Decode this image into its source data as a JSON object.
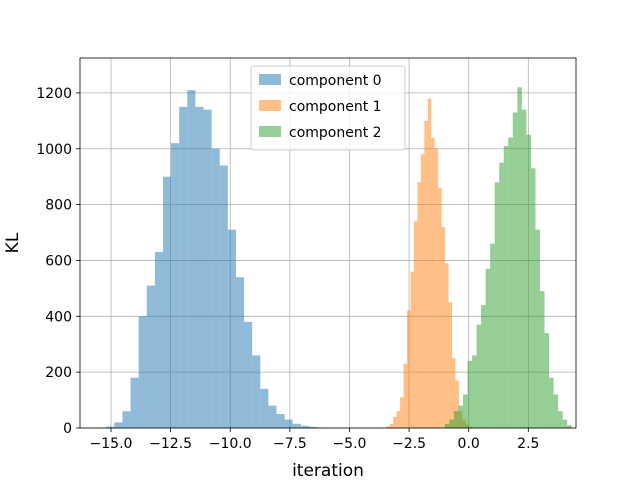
{
  "chart_data": {
    "type": "histogram",
    "title": "",
    "xlabel": "iteration",
    "ylabel": "KL",
    "xlim": [
      -16.3,
      4.5
    ],
    "ylim": [
      0,
      1325
    ],
    "x_ticks": [
      -15.0,
      -12.5,
      -10.0,
      -7.5,
      -5.0,
      -2.5,
      0.0,
      2.5
    ],
    "x_tick_labels": [
      "−15.0",
      "−12.5",
      "−10.0",
      "−7.5",
      "−5.0",
      "−2.5",
      "0.0",
      "2.5"
    ],
    "y_ticks": [
      0,
      200,
      400,
      600,
      800,
      1000,
      1200
    ],
    "y_tick_labels": [
      "0",
      "200",
      "400",
      "600",
      "800",
      "1000",
      "1200"
    ],
    "grid": true,
    "legend_position": "top-center",
    "series": [
      {
        "name": "component 0",
        "color": "#1f77b4",
        "opacity": 0.5,
        "bin_start": -15.2,
        "bin_width": 0.34,
        "values": [
          5,
          20,
          60,
          180,
          400,
          510,
          630,
          900,
          1020,
          1150,
          1210,
          1150,
          1140,
          1000,
          940,
          710,
          540,
          380,
          260,
          140,
          80,
          50,
          30,
          15,
          8,
          4,
          2
        ]
      },
      {
        "name": "component 1",
        "color": "#ff7f0e",
        "opacity": 0.5,
        "bin_start": -3.6,
        "bin_width": 0.145,
        "values": [
          2,
          6,
          15,
          40,
          60,
          110,
          230,
          420,
          560,
          740,
          880,
          980,
          1100,
          1180,
          1040,
          1000,
          860,
          720,
          590,
          450,
          250,
          170,
          60,
          30,
          12,
          5
        ]
      },
      {
        "name": "component 2",
        "color": "#2ca02c",
        "opacity": 0.5,
        "bin_start": -1.0,
        "bin_width": 0.19,
        "values": [
          15,
          30,
          60,
          80,
          120,
          240,
          260,
          370,
          440,
          570,
          660,
          880,
          950,
          1010,
          1040,
          1130,
          1220,
          1140,
          1050,
          930,
          710,
          490,
          340,
          180,
          120,
          60,
          30,
          10
        ]
      }
    ]
  }
}
